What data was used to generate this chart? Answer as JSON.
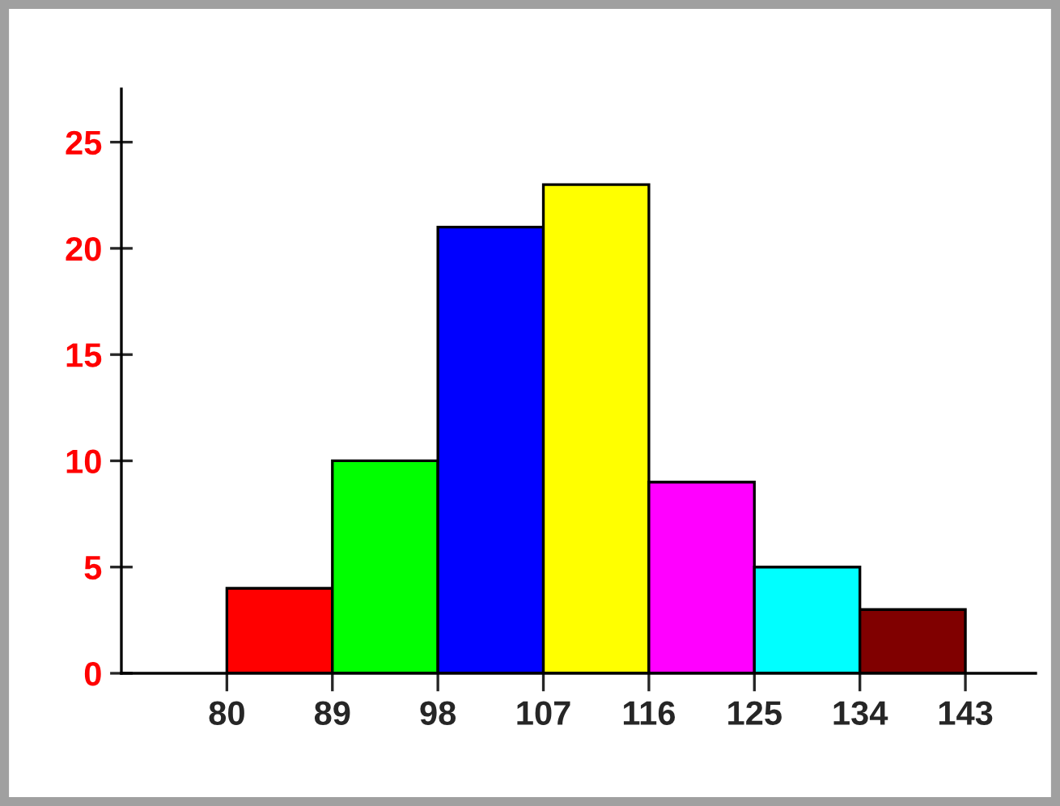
{
  "chart_data": {
    "type": "histogram",
    "bins": [
      80,
      89,
      98,
      107,
      116,
      125,
      134,
      143
    ],
    "values": [
      4,
      10,
      21,
      23,
      9,
      5,
      3
    ],
    "colors": [
      "#ff0000",
      "#00ff00",
      "#0000ff",
      "#ffff00",
      "#ff00ff",
      "#00ffff",
      "#800000"
    ],
    "xlim": [
      71,
      149
    ],
    "xticks": [
      80,
      89,
      98,
      107,
      116,
      125,
      134,
      143
    ],
    "ylim": [
      0,
      27.5
    ],
    "yticks": [
      0,
      5,
      10,
      15,
      20,
      25
    ],
    "grid": false,
    "legend": false
  }
}
